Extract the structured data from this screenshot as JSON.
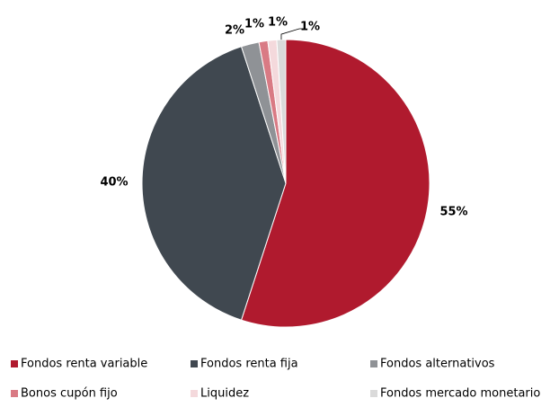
{
  "chart_data": {
    "type": "pie",
    "categories": [
      "Fondos renta variable",
      "Fondos renta fija",
      "Fondos alternativos",
      "Bonos cupón fijo",
      "Liquidez",
      "Fondos mercado monetario"
    ],
    "values": [
      55,
      40,
      2,
      1,
      1,
      1
    ],
    "value_labels": [
      "55%",
      "40%",
      "2%",
      "1%",
      "1%",
      "1%"
    ],
    "colors": [
      "#b01a2e",
      "#404850",
      "#8f9296",
      "#d97a84",
      "#f4d9dc",
      "#dadada"
    ],
    "legend": "bottom"
  }
}
